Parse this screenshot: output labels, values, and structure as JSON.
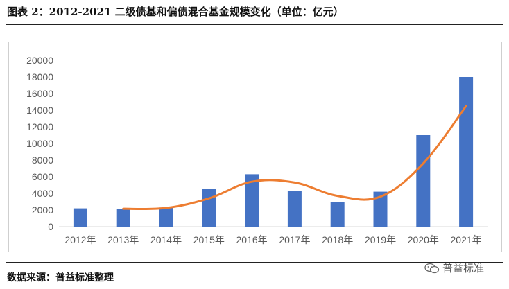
{
  "figure": {
    "title": "图表 2：2012-2021 二级债基和偏债混合基金规模变化（单位：亿元）",
    "source": "数据来源：普益标准整理",
    "watermark": "普益标准"
  },
  "colors": {
    "bar": "#4472C4",
    "line": "#ED7D31",
    "grid": "#d9d9d9",
    "axis_text": "#595959"
  },
  "icons": {
    "watermark": "wechat-icon"
  },
  "chart_data": {
    "type": "bar",
    "categories": [
      "2012年",
      "2013年",
      "2014年",
      "2015年",
      "2016年",
      "2017年",
      "2018年",
      "2019年",
      "2020年",
      "2021年"
    ],
    "series": [
      {
        "type": "bar",
        "values": [
          2200,
          2100,
          2300,
          4500,
          6300,
          4300,
          3000,
          4200,
          11000,
          18000
        ]
      },
      {
        "type": "line",
        "values": [
          null,
          2150,
          2250,
          3400,
          5400,
          5300,
          3700,
          3600,
          7600,
          14500
        ]
      }
    ],
    "ylim": [
      0,
      20000
    ],
    "yticks": [
      0,
      2000,
      4000,
      6000,
      8000,
      10000,
      12000,
      14000,
      16000,
      18000,
      20000
    ],
    "grid": false,
    "legend": "none"
  }
}
